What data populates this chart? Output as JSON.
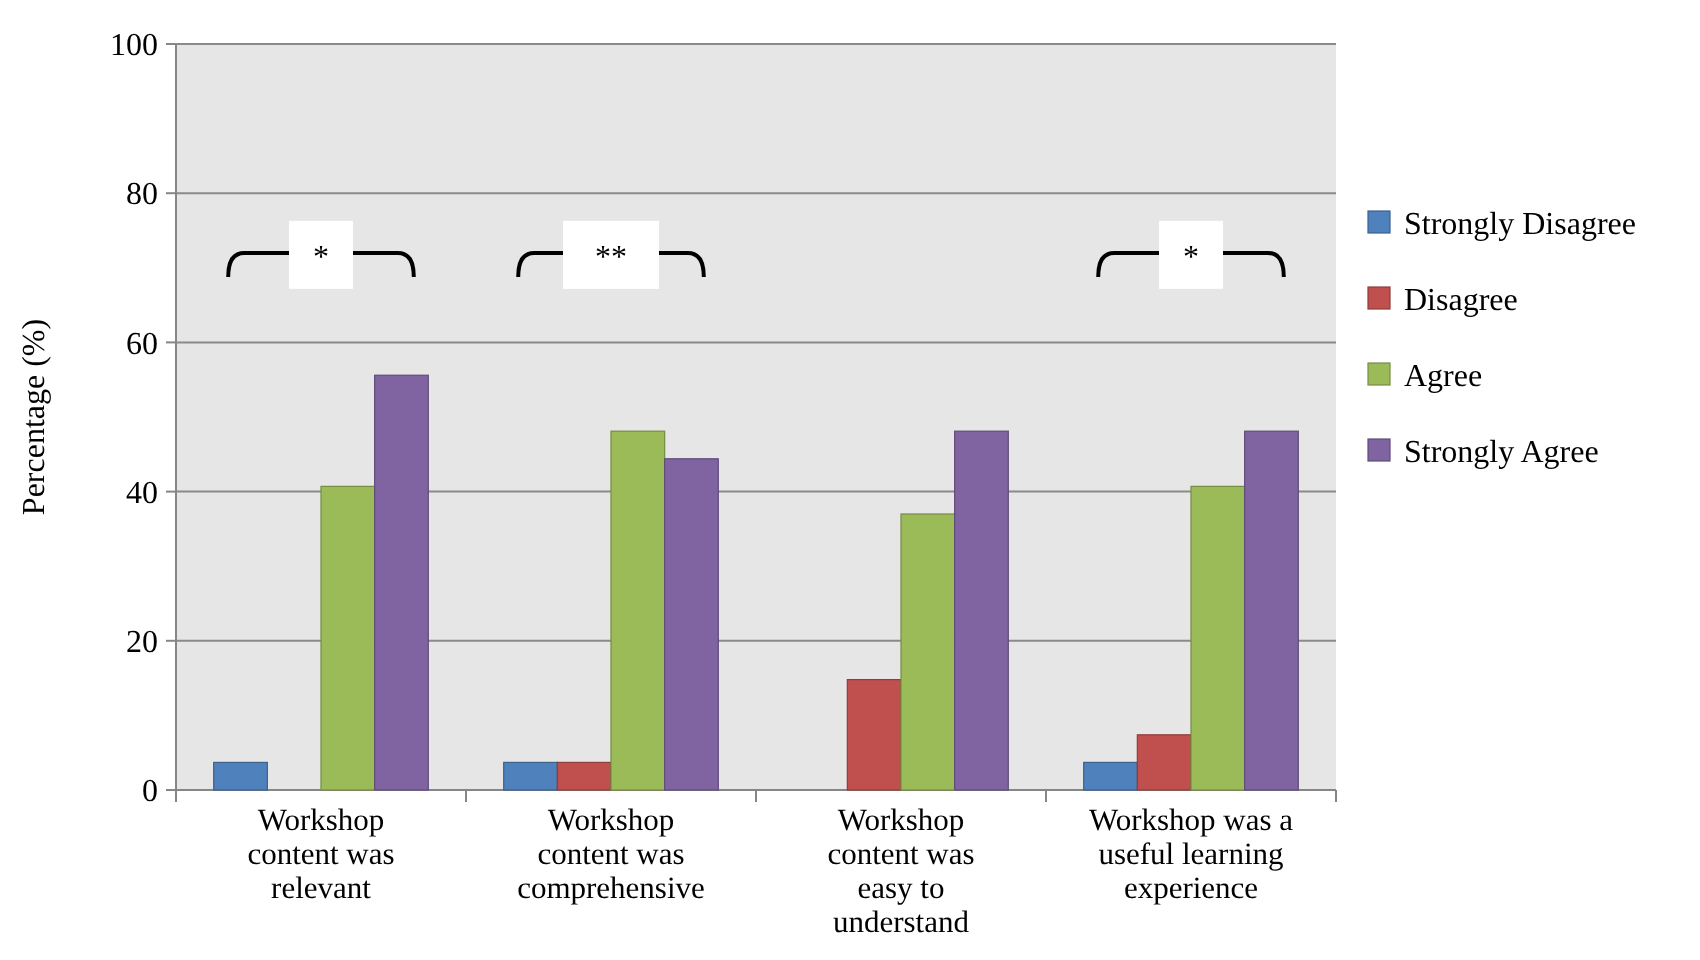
{
  "chart_data": {
    "type": "bar",
    "ylabel": "Percentage (%)",
    "categories": [
      "Workshop content was relevant",
      "Workshop content was comprehensive",
      "Workshop content was easy to understand",
      "Workshop was a useful learning experience"
    ],
    "series": [
      {
        "name": "Strongly Disagree",
        "color": "#4f81bd",
        "values": [
          3.7,
          3.7,
          0,
          3.7
        ]
      },
      {
        "name": "Disagree",
        "color": "#c0504d",
        "values": [
          0,
          3.7,
          14.8,
          7.4
        ]
      },
      {
        "name": "Agree",
        "color": "#9bbb59",
        "values": [
          40.7,
          48.1,
          37.0,
          40.7
        ]
      },
      {
        "name": "Strongly Agree",
        "color": "#8064a2",
        "values": [
          55.6,
          44.4,
          48.1,
          48.1
        ]
      }
    ],
    "ylim": [
      0,
      100
    ],
    "yticks": [
      0,
      20,
      40,
      60,
      80,
      100
    ],
    "grid": "y",
    "legend": "right",
    "annotations": [
      "*",
      "**",
      "*"
    ]
  }
}
